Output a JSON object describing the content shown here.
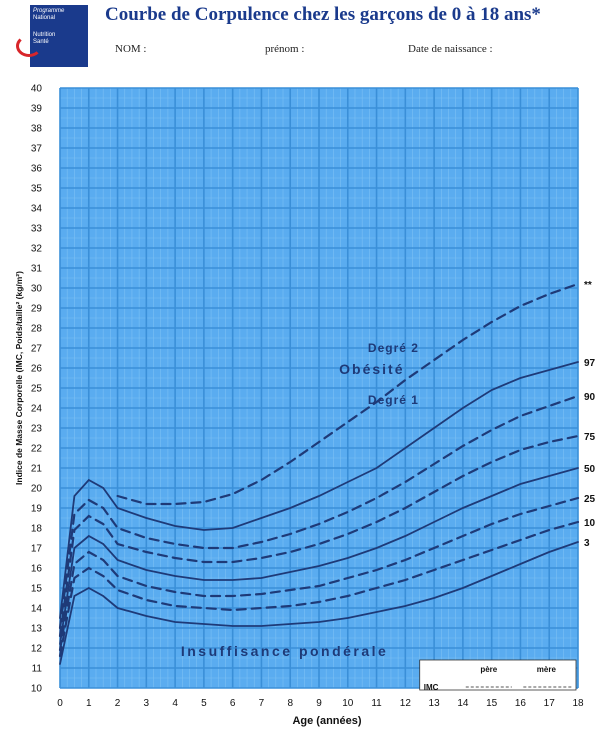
{
  "header": {
    "logo_lines": [
      "Programme",
      "National",
      "Nutrition",
      "Santé"
    ],
    "title": "Courbe de Corpulence chez les garçons de 0 à 18 ans*",
    "nom_label": "NOM :",
    "prenom_label": "prénom :",
    "dob_label": "Date de naissance :"
  },
  "colors": {
    "grid": "#3a8fd8",
    "background": "#5aacf0",
    "curve": "#1e3a78",
    "title": "#1a3a8c"
  },
  "chart_data": {
    "type": "line",
    "title": "Courbe de Corpulence chez les garçons de 0 à 18 ans*",
    "xlabel": "Age (années)",
    "ylabel": "Indice de Masse Corporelle (IMC, Poids/taille² (kg/m²)",
    "xlim": [
      0,
      18
    ],
    "ylim": [
      10,
      40
    ],
    "x_ticks": [
      "0",
      "1",
      "2",
      "3",
      "4",
      "5",
      "6",
      "7",
      "8",
      "9",
      "10",
      "11",
      "12",
      "13",
      "14",
      "15",
      "16",
      "17",
      "18"
    ],
    "y_ticks": [
      "10",
      "11",
      "12",
      "13",
      "14",
      "15",
      "16",
      "17",
      "18",
      "19",
      "20",
      "21",
      "22",
      "23",
      "24",
      "25",
      "26",
      "27",
      "28",
      "29",
      "30",
      "31",
      "32",
      "33",
      "34",
      "35",
      "36",
      "37",
      "38",
      "39",
      "40"
    ],
    "grid": true,
    "x": [
      0,
      0.5,
      1,
      1.5,
      2,
      3,
      4,
      5,
      6,
      7,
      8,
      9,
      10,
      11,
      12,
      13,
      14,
      15,
      16,
      17,
      18
    ],
    "series": [
      {
        "name": "97",
        "style": "solid",
        "values": [
          13.5,
          19.6,
          20.4,
          20.0,
          19.0,
          18.5,
          18.1,
          17.9,
          18.0,
          18.5,
          19.0,
          19.6,
          20.3,
          21.0,
          22.0,
          23.0,
          24.0,
          24.9,
          25.5,
          25.9,
          26.3
        ]
      },
      {
        "name": "90",
        "style": "dashed",
        "values": [
          13.0,
          18.7,
          19.4,
          19.0,
          18.0,
          17.5,
          17.2,
          17.0,
          17.0,
          17.3,
          17.7,
          18.2,
          18.8,
          19.5,
          20.3,
          21.2,
          22.1,
          22.9,
          23.6,
          24.1,
          24.6
        ]
      },
      {
        "name": "75",
        "style": "dashed",
        "values": [
          12.6,
          17.9,
          18.6,
          18.2,
          17.2,
          16.8,
          16.5,
          16.3,
          16.3,
          16.5,
          16.8,
          17.2,
          17.7,
          18.3,
          19.0,
          19.8,
          20.6,
          21.3,
          21.9,
          22.3,
          22.6
        ]
      },
      {
        "name": "50",
        "style": "solid",
        "values": [
          12.2,
          17.0,
          17.6,
          17.2,
          16.4,
          15.9,
          15.6,
          15.4,
          15.4,
          15.5,
          15.8,
          16.1,
          16.5,
          17.0,
          17.6,
          18.3,
          19.0,
          19.6,
          20.2,
          20.6,
          21.0
        ]
      },
      {
        "name": "25",
        "style": "dashed",
        "values": [
          11.9,
          16.2,
          16.8,
          16.4,
          15.6,
          15.1,
          14.8,
          14.6,
          14.6,
          14.7,
          14.9,
          15.1,
          15.5,
          15.9,
          16.4,
          17.0,
          17.6,
          18.2,
          18.7,
          19.1,
          19.5
        ]
      },
      {
        "name": "10",
        "style": "dashed",
        "values": [
          11.6,
          15.5,
          16.0,
          15.6,
          14.9,
          14.4,
          14.1,
          14.0,
          13.9,
          14.0,
          14.1,
          14.3,
          14.6,
          15.0,
          15.4,
          15.9,
          16.4,
          16.9,
          17.4,
          17.9,
          18.3
        ]
      },
      {
        "name": "3",
        "style": "solid",
        "values": [
          11.2,
          14.6,
          15.0,
          14.6,
          14.0,
          13.6,
          13.3,
          13.2,
          13.1,
          13.1,
          13.2,
          13.3,
          13.5,
          13.8,
          14.1,
          14.5,
          15.0,
          15.6,
          16.2,
          16.8,
          17.3
        ]
      },
      {
        "name": "**",
        "style": "dashed",
        "values": [
          null,
          null,
          null,
          null,
          19.6,
          19.2,
          19.2,
          19.3,
          19.7,
          20.4,
          21.3,
          22.3,
          23.3,
          24.3,
          25.4,
          26.4,
          27.4,
          28.3,
          29.1,
          29.7,
          30.2
        ]
      }
    ],
    "annotations": {
      "degre2": "Degré 2",
      "obesite": "Obésité",
      "degre1": "Degré 1",
      "insuffisance": "Insuffisance pondérale"
    },
    "legend": {
      "title": "IMC",
      "entries": [
        "père",
        "mère"
      ],
      "placement": "bottom-right"
    }
  }
}
